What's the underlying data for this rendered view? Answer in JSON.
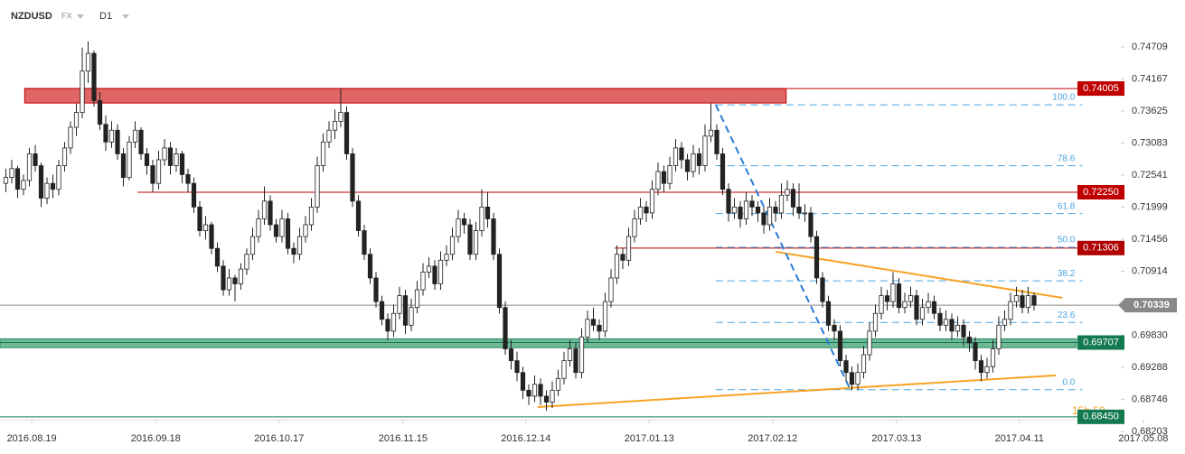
{
  "header": {
    "symbol": "NZDUSD",
    "market": "FX",
    "timeframe": "D1"
  },
  "chart_data": {
    "type": "candlestick",
    "xlim": [
      -1,
      200
    ],
    "ylim": [
      0.68203,
      0.75503
    ],
    "xticks": [
      {
        "value": 4.4,
        "label": "2016.08.19"
      },
      {
        "value": 25.5,
        "label": "2016.09.18"
      },
      {
        "value": 46.5,
        "label": "2016.10.17"
      },
      {
        "value": 67.6,
        "label": "2016.11.15"
      },
      {
        "value": 88.5,
        "label": "2016.12.14"
      },
      {
        "value": 109.5,
        "label": "2017.01.13"
      },
      {
        "value": 130.5,
        "label": "2017.02.12"
      },
      {
        "value": 151.6,
        "label": "2017.03.13"
      },
      {
        "value": 172.5,
        "label": "2017.04.11"
      },
      {
        "value": 193.6,
        "label": "2017.05.08"
      }
    ],
    "yticks": [
      0.74709,
      0.74167,
      0.73625,
      0.73083,
      0.72541,
      0.71999,
      0.71456,
      0.70914,
      {
        "value": 0.6983,
        "label": "0.69830"
      },
      0.69288,
      0.68746,
      0.68203
    ],
    "up_color": "#ffffff",
    "down_color": "#222222",
    "wick_color": "#222222",
    "candles": [
      [
        0.724,
        0.7265,
        0.7225,
        0.725
      ],
      [
        0.725,
        0.728,
        0.724,
        0.7265
      ],
      [
        0.7265,
        0.727,
        0.7215,
        0.723
      ],
      [
        0.723,
        0.7255,
        0.722,
        0.7245
      ],
      [
        0.7245,
        0.73,
        0.7235,
        0.729
      ],
      [
        0.729,
        0.7305,
        0.726,
        0.727
      ],
      [
        0.727,
        0.7275,
        0.72,
        0.7215
      ],
      [
        0.7215,
        0.725,
        0.7205,
        0.724
      ],
      [
        0.724,
        0.7255,
        0.7215,
        0.723
      ],
      [
        0.723,
        0.728,
        0.722,
        0.727
      ],
      [
        0.727,
        0.731,
        0.726,
        0.73
      ],
      [
        0.73,
        0.7345,
        0.729,
        0.7335
      ],
      [
        0.7335,
        0.7375,
        0.732,
        0.736
      ],
      [
        0.736,
        0.747,
        0.735,
        0.743
      ],
      [
        0.743,
        0.748,
        0.741,
        0.746
      ],
      [
        0.746,
        0.7465,
        0.737,
        0.738
      ],
      [
        0.738,
        0.7395,
        0.733,
        0.734
      ],
      [
        0.734,
        0.7355,
        0.7295,
        0.731
      ],
      [
        0.731,
        0.7345,
        0.73,
        0.733
      ],
      [
        0.733,
        0.734,
        0.728,
        0.729
      ],
      [
        0.729,
        0.73,
        0.7235,
        0.725
      ],
      [
        0.725,
        0.732,
        0.7245,
        0.731
      ],
      [
        0.731,
        0.7345,
        0.73,
        0.733
      ],
      [
        0.733,
        0.7335,
        0.728,
        0.729
      ],
      [
        0.729,
        0.73,
        0.7255,
        0.727
      ],
      [
        0.727,
        0.728,
        0.7225,
        0.724
      ],
      [
        0.724,
        0.7295,
        0.723,
        0.728
      ],
      [
        0.728,
        0.7315,
        0.727,
        0.73
      ],
      [
        0.73,
        0.731,
        0.7255,
        0.727
      ],
      [
        0.727,
        0.73,
        0.726,
        0.729
      ],
      [
        0.729,
        0.7295,
        0.724,
        0.7255
      ],
      [
        0.7255,
        0.7265,
        0.7225,
        0.724
      ],
      [
        0.724,
        0.725,
        0.719,
        0.72
      ],
      [
        0.72,
        0.721,
        0.715,
        0.716
      ],
      [
        0.716,
        0.7185,
        0.7145,
        0.717
      ],
      [
        0.717,
        0.7175,
        0.712,
        0.713
      ],
      [
        0.713,
        0.714,
        0.709,
        0.71
      ],
      [
        0.71,
        0.711,
        0.705,
        0.706
      ],
      [
        0.706,
        0.7095,
        0.705,
        0.708
      ],
      [
        0.708,
        0.7085,
        0.704,
        0.707
      ],
      [
        0.707,
        0.7105,
        0.706,
        0.7095
      ],
      [
        0.7095,
        0.713,
        0.7085,
        0.712
      ],
      [
        0.712,
        0.7165,
        0.711,
        0.715
      ],
      [
        0.715,
        0.7195,
        0.714,
        0.718
      ],
      [
        0.718,
        0.7235,
        0.717,
        0.721
      ],
      [
        0.721,
        0.722,
        0.716,
        0.717
      ],
      [
        0.717,
        0.718,
        0.714,
        0.715
      ],
      [
        0.715,
        0.7195,
        0.714,
        0.718
      ],
      [
        0.718,
        0.719,
        0.712,
        0.713
      ],
      [
        0.713,
        0.714,
        0.7105,
        0.712
      ],
      [
        0.712,
        0.7165,
        0.711,
        0.715
      ],
      [
        0.715,
        0.7185,
        0.714,
        0.717
      ],
      [
        0.717,
        0.7215,
        0.716,
        0.72
      ],
      [
        0.72,
        0.7285,
        0.719,
        0.727
      ],
      [
        0.727,
        0.7325,
        0.726,
        0.731
      ],
      [
        0.731,
        0.7345,
        0.73,
        0.733
      ],
      [
        0.733,
        0.7365,
        0.7315,
        0.7345
      ],
      [
        0.7345,
        0.74,
        0.7335,
        0.736
      ],
      [
        0.736,
        0.737,
        0.728,
        0.729
      ],
      [
        0.729,
        0.73,
        0.72,
        0.721
      ],
      [
        0.721,
        0.722,
        0.715,
        0.716
      ],
      [
        0.716,
        0.717,
        0.711,
        0.712
      ],
      [
        0.712,
        0.713,
        0.707,
        0.708
      ],
      [
        0.708,
        0.709,
        0.703,
        0.704
      ],
      [
        0.704,
        0.705,
        0.7,
        0.701
      ],
      [
        0.701,
        0.702,
        0.6975,
        0.699
      ],
      [
        0.699,
        0.7035,
        0.698,
        0.702
      ],
      [
        0.702,
        0.7065,
        0.701,
        0.705
      ],
      [
        0.705,
        0.706,
        0.6985,
        0.7
      ],
      [
        0.7,
        0.7045,
        0.699,
        0.703
      ],
      [
        0.703,
        0.7075,
        0.702,
        0.706
      ],
      [
        0.706,
        0.7105,
        0.705,
        0.709
      ],
      [
        0.709,
        0.7115,
        0.708,
        0.71
      ],
      [
        0.71,
        0.711,
        0.706,
        0.707
      ],
      [
        0.707,
        0.7125,
        0.706,
        0.711
      ],
      [
        0.711,
        0.7135,
        0.71,
        0.712
      ],
      [
        0.712,
        0.7165,
        0.711,
        0.715
      ],
      [
        0.715,
        0.7195,
        0.714,
        0.718
      ],
      [
        0.718,
        0.719,
        0.7155,
        0.717
      ],
      [
        0.717,
        0.718,
        0.711,
        0.712
      ],
      [
        0.712,
        0.7175,
        0.711,
        0.716
      ],
      [
        0.716,
        0.723,
        0.715,
        0.72
      ],
      [
        0.72,
        0.7225,
        0.7165,
        0.718
      ],
      [
        0.718,
        0.719,
        0.711,
        0.712
      ],
      [
        0.712,
        0.713,
        0.702,
        0.703
      ],
      [
        0.703,
        0.704,
        0.695,
        0.696
      ],
      [
        0.696,
        0.6975,
        0.6925,
        0.694
      ],
      [
        0.694,
        0.6955,
        0.6905,
        0.692
      ],
      [
        0.692,
        0.693,
        0.6875,
        0.689
      ],
      [
        0.689,
        0.69,
        0.6865,
        0.688
      ],
      [
        0.688,
        0.6915,
        0.687,
        0.69
      ],
      [
        0.69,
        0.691,
        0.6865,
        0.688
      ],
      [
        0.688,
        0.689,
        0.6855,
        0.687
      ],
      [
        0.687,
        0.6905,
        0.686,
        0.689
      ],
      [
        0.689,
        0.6925,
        0.688,
        0.691
      ],
      [
        0.691,
        0.6955,
        0.69,
        0.694
      ],
      [
        0.694,
        0.6975,
        0.693,
        0.696
      ],
      [
        0.696,
        0.697,
        0.691,
        0.692
      ],
      [
        0.692,
        0.6995,
        0.691,
        0.698
      ],
      [
        0.698,
        0.7025,
        0.697,
        0.701
      ],
      [
        0.701,
        0.703,
        0.699,
        0.7
      ],
      [
        0.7,
        0.701,
        0.6975,
        0.699
      ],
      [
        0.699,
        0.7055,
        0.698,
        0.704
      ],
      [
        0.704,
        0.7095,
        0.703,
        0.708
      ],
      [
        0.708,
        0.7135,
        0.707,
        0.712
      ],
      [
        0.712,
        0.713,
        0.7095,
        0.711
      ],
      [
        0.711,
        0.7165,
        0.71,
        0.715
      ],
      [
        0.715,
        0.7195,
        0.714,
        0.718
      ],
      [
        0.718,
        0.7215,
        0.717,
        0.72
      ],
      [
        0.72,
        0.721,
        0.7175,
        0.719
      ],
      [
        0.719,
        0.7245,
        0.718,
        0.723
      ],
      [
        0.723,
        0.7275,
        0.722,
        0.726
      ],
      [
        0.726,
        0.727,
        0.7225,
        0.724
      ],
      [
        0.724,
        0.7285,
        0.723,
        0.727
      ],
      [
        0.727,
        0.7315,
        0.726,
        0.73
      ],
      [
        0.73,
        0.731,
        0.7265,
        0.728
      ],
      [
        0.728,
        0.729,
        0.7245,
        0.726
      ],
      [
        0.726,
        0.7305,
        0.725,
        0.729
      ],
      [
        0.729,
        0.73,
        0.7255,
        0.727
      ],
      [
        0.727,
        0.734,
        0.726,
        0.732
      ],
      [
        0.732,
        0.7375,
        0.731,
        0.733
      ],
      [
        0.733,
        0.734,
        0.728,
        0.729
      ],
      [
        0.729,
        0.73,
        0.722,
        0.723
      ],
      [
        0.723,
        0.724,
        0.7175,
        0.719
      ],
      [
        0.719,
        0.7215,
        0.718,
        0.72
      ],
      [
        0.72,
        0.721,
        0.7165,
        0.718
      ],
      [
        0.718,
        0.7225,
        0.717,
        0.721
      ],
      [
        0.721,
        0.722,
        0.7185,
        0.72
      ],
      [
        0.72,
        0.721,
        0.7175,
        0.719
      ],
      [
        0.719,
        0.72,
        0.7155,
        0.717
      ],
      [
        0.717,
        0.7215,
        0.716,
        0.72
      ],
      [
        0.72,
        0.721,
        0.7175,
        0.719
      ],
      [
        0.719,
        0.724,
        0.718,
        0.722
      ],
      [
        0.722,
        0.7245,
        0.721,
        0.723
      ],
      [
        0.723,
        0.724,
        0.7185,
        0.72
      ],
      [
        0.72,
        0.724,
        0.718,
        0.719
      ],
      [
        0.719,
        0.7205,
        0.7175,
        0.719
      ],
      [
        0.719,
        0.72,
        0.714,
        0.715
      ],
      [
        0.715,
        0.716,
        0.707,
        0.708
      ],
      [
        0.708,
        0.709,
        0.703,
        0.704
      ],
      [
        0.704,
        0.705,
        0.699,
        0.7
      ],
      [
        0.7,
        0.701,
        0.6975,
        0.699
      ],
      [
        0.699,
        0.7,
        0.693,
        0.694
      ],
      [
        0.694,
        0.695,
        0.6905,
        0.692
      ],
      [
        0.692,
        0.693,
        0.689,
        0.69
      ],
      [
        0.69,
        0.6935,
        0.689,
        0.692
      ],
      [
        0.692,
        0.6965,
        0.691,
        0.695
      ],
      [
        0.695,
        0.7005,
        0.694,
        0.699
      ],
      [
        0.699,
        0.7035,
        0.698,
        0.702
      ],
      [
        0.702,
        0.7065,
        0.701,
        0.705
      ],
      [
        0.705,
        0.706,
        0.7025,
        0.704
      ],
      [
        0.704,
        0.709,
        0.703,
        0.707
      ],
      [
        0.707,
        0.708,
        0.702,
        0.703
      ],
      [
        0.703,
        0.7055,
        0.702,
        0.704
      ],
      [
        0.704,
        0.7065,
        0.703,
        0.705
      ],
      [
        0.705,
        0.706,
        0.7,
        0.701
      ],
      [
        0.701,
        0.7045,
        0.7,
        0.703
      ],
      [
        0.703,
        0.7055,
        0.702,
        0.704
      ],
      [
        0.704,
        0.705,
        0.701,
        0.702
      ],
      [
        0.702,
        0.703,
        0.699,
        0.7
      ],
      [
        0.7,
        0.7025,
        0.699,
        0.701
      ],
      [
        0.701,
        0.702,
        0.6975,
        0.699
      ],
      [
        0.699,
        0.7015,
        0.698,
        0.7
      ],
      [
        0.7,
        0.701,
        0.6965,
        0.698
      ],
      [
        0.698,
        0.699,
        0.6955,
        0.697
      ],
      [
        0.697,
        0.698,
        0.6925,
        0.694
      ],
      [
        0.694,
        0.695,
        0.6905,
        0.692
      ],
      [
        0.692,
        0.6945,
        0.691,
        0.693
      ],
      [
        0.693,
        0.6975,
        0.692,
        0.696
      ],
      [
        0.696,
        0.7015,
        0.695,
        0.7
      ],
      [
        0.7,
        0.7025,
        0.699,
        0.701
      ],
      [
        0.701,
        0.7055,
        0.7,
        0.704
      ],
      [
        0.704,
        0.7065,
        0.703,
        0.705
      ],
      [
        0.705,
        0.706,
        0.702,
        0.703
      ],
      [
        0.703,
        0.7065,
        0.702,
        0.705
      ],
      [
        0.705,
        0.7055,
        0.7025,
        0.7034
      ]
    ],
    "zones": [
      {
        "high": 0.74005,
        "low": 0.7376,
        "start": 3.2,
        "end": 132.8,
        "color": "#e06666",
        "border": "#c00000"
      },
      {
        "high": 0.6977,
        "low": 0.6962,
        "start": -1,
        "end": 182.2,
        "color": "#6fb998",
        "border": "#2f8a60"
      }
    ],
    "levels": [
      {
        "value": 0.74005,
        "color": "#c00000",
        "start": 3.2
      },
      {
        "value": 0.7225,
        "label": "0.72250",
        "color": "#c00000",
        "start": 22.4
      },
      {
        "value": 0.71306,
        "color": "#b00000",
        "start": 103.6
      },
      {
        "value": 0.70339,
        "color": "#888888",
        "start": -1,
        "current": true
      },
      {
        "value": 0.69707,
        "color": "#137a4f",
        "start": -1
      },
      {
        "value": 0.6845,
        "label": "0.68450",
        "color": "#137a4f",
        "start": -1
      }
    ],
    "fib": {
      "high": 0.7373,
      "low": 0.6891,
      "start": 120.8,
      "end": 183.2,
      "color": "#4aa3df",
      "levels": [
        {
          "value": 100,
          "label": "100.0"
        },
        78.6,
        61.8,
        {
          "value": 50,
          "label": "50.0"
        },
        38.2,
        23.6,
        {
          "value": 0,
          "label": "0.0"
        }
      ]
    },
    "trendlines": [
      {
        "color": "#f7a325",
        "dashed": false,
        "points": [
          [
            90.5,
            0.68616
          ],
          [
            178.7,
            0.69151
          ]
        ]
      },
      {
        "color": "#f7a325",
        "dashed": false,
        "points": [
          [
            131,
            0.71243
          ],
          [
            179.8,
            0.70464
          ]
        ]
      },
      {
        "color": "#2a7bd4",
        "dashed": true,
        "points": [
          [
            120.8,
            0.73732
          ],
          [
            143.6,
            0.68937
          ]
        ]
      }
    ],
    "countdown": "15h 58"
  }
}
